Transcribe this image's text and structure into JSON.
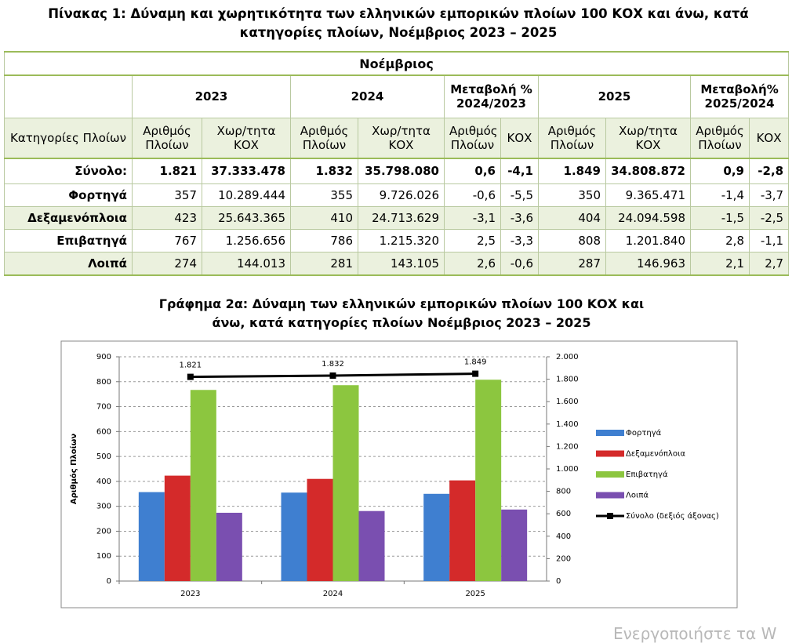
{
  "table_title": "Πίνακας 1: Δύναμη και χωρητικότητα των ελληνικών εμπορικών πλοίων 100 ΚΟΧ και άνω, κατά κατηγορίες πλοίων, Νοέμβριος 2023 – 2025",
  "table": {
    "month_header": "Νοέμβριος",
    "group_headers": [
      "2023",
      "2024",
      "Μεταβολή % 2024/2023",
      "2025",
      "Μεταβολή% 2025/2024"
    ],
    "sub_headers": [
      "Κατηγορίες Πλοίων",
      "Αριθμός Πλοίων",
      "Χωρ/τητα ΚΟΧ",
      "Αριθμός Πλοίων",
      "Χωρ/τητα ΚΟΧ",
      "Αριθμός Πλοίων",
      "ΚΟΧ",
      "Αριθμός Πλοίων",
      "Χωρ/τητα ΚΟΧ",
      "Αριθμός Πλοίων",
      "ΚΟΧ"
    ],
    "rows": [
      [
        "Σύνολο:",
        "1.821",
        "37.333.478",
        "1.832",
        "35.798.080",
        "0,6",
        "-4,1",
        "1.849",
        "34.808.872",
        "0,9",
        "-2,8"
      ],
      [
        "Φορτηγά",
        "357",
        "10.289.444",
        "355",
        "9.726.026",
        "-0,6",
        "-5,5",
        "350",
        "9.365.471",
        "-1,4",
        "-3,7"
      ],
      [
        "Δεξαμενόπλοια",
        "423",
        "25.643.365",
        "410",
        "24.713.629",
        "-3,1",
        "-3,6",
        "404",
        "24.094.598",
        "-1,5",
        "-2,5"
      ],
      [
        "Επιβατηγά",
        "767",
        "1.256.656",
        "786",
        "1.215.320",
        "2,5",
        "-3,3",
        "808",
        "1.201.840",
        "2,8",
        "-1,1"
      ],
      [
        "Λοιπά",
        "274",
        "144.013",
        "281",
        "143.105",
        "2,6",
        "-0,6",
        "287",
        "146.963",
        "2,1",
        "2,7"
      ]
    ]
  },
  "chart_data": {
    "type": "bar",
    "title": "Γράφημα 2α: Δύναμη των ελληνικών εμπορικών πλοίων 100 ΚΟΧ και άνω, κατά κατηγορίες πλοίων Νοέμβριος 2023 – 2025",
    "y_label": "Αριθμός Πλοίων",
    "categories": [
      "2023",
      "2024",
      "2025"
    ],
    "ylim": [
      0,
      900
    ],
    "yticks": [
      0,
      100,
      200,
      300,
      400,
      500,
      600,
      700,
      800,
      900
    ],
    "y2lim": [
      0,
      2000
    ],
    "y2ticks": [
      0,
      200,
      400,
      600,
      800,
      {
        "value": 1000,
        "label": "1.000"
      },
      {
        "value": 1200,
        "label": "1.200"
      },
      {
        "value": 1400,
        "label": "1.400"
      },
      {
        "value": 1600,
        "label": "1.600"
      },
      {
        "value": 1800,
        "label": "1.800"
      },
      {
        "value": 2000,
        "label": "2.000"
      }
    ],
    "grid": true,
    "legend": "right",
    "series": [
      {
        "name": "Φορτηγά",
        "color": "#3f7fd0",
        "values": [
          357,
          355,
          350
        ]
      },
      {
        "name": "Δεξαμενόπλοια",
        "color": "#d42a2a",
        "values": [
          423,
          410,
          404
        ]
      },
      {
        "name": "Επιβατηγά",
        "color": "#8cc63f",
        "values": [
          767,
          786,
          808
        ]
      },
      {
        "name": "Λοιπά",
        "color": "#7a4fb0",
        "values": [
          274,
          281,
          287
        ]
      },
      {
        "name": "Σύνολο (δεξιός άξονας)",
        "color": "#000000",
        "type": "line",
        "axis": "y2",
        "values": [
          1821,
          1832,
          1849
        ],
        "value_labels": [
          "1.821",
          "1.832",
          "1.849"
        ]
      }
    ]
  },
  "watermark": "Ενεργοποιήστε τα W"
}
